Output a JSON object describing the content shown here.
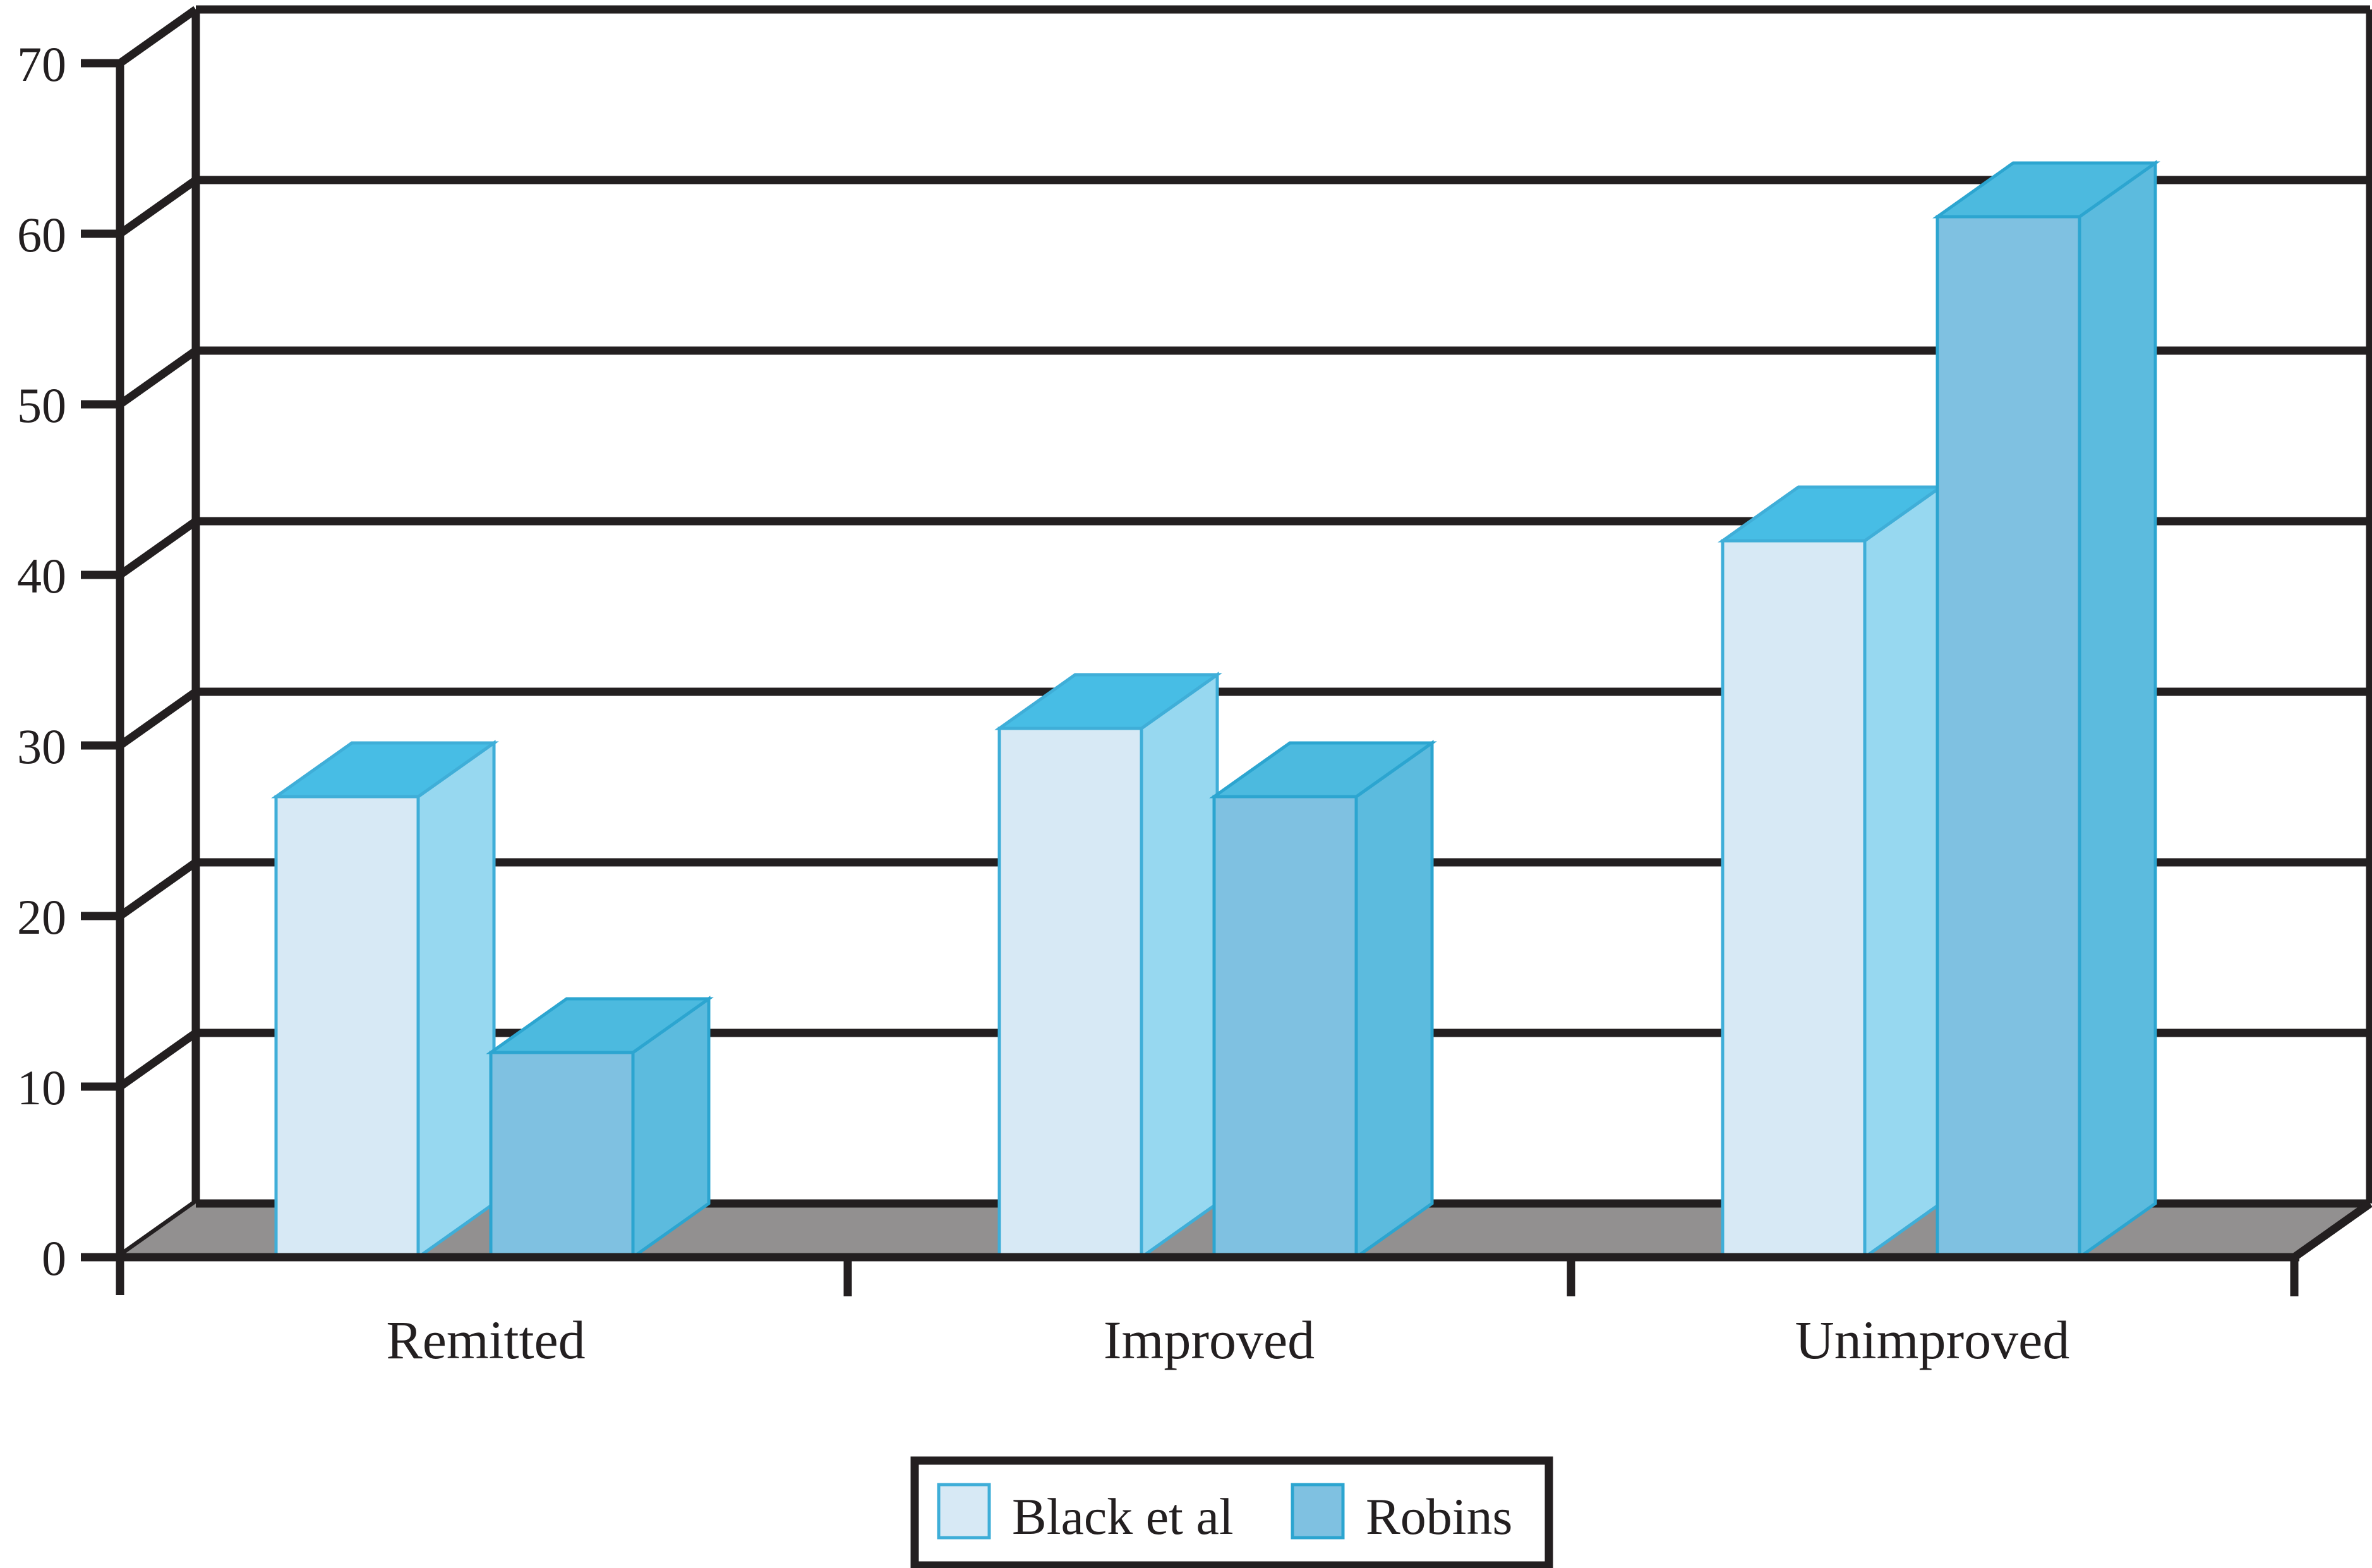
{
  "chart_data": {
    "type": "bar",
    "style": "3d-columns",
    "title": "",
    "categories": [
      "Remitted",
      "Improved",
      "Unimproved"
    ],
    "series": [
      {
        "name": "Black et al",
        "values": [
          27,
          31,
          42
        ]
      },
      {
        "name": "Robins",
        "values": [
          12,
          27,
          61
        ]
      }
    ],
    "xlabel": "",
    "ylabel": "",
    "ylim": [
      0,
      70
    ],
    "ytick_step": 10,
    "yticks": [
      0,
      10,
      20,
      30,
      40,
      50,
      60,
      70
    ],
    "grid": true,
    "legend_position": "bottom-center"
  },
  "colors": {
    "series": [
      {
        "front": "#D7E9F5",
        "side": "#97D8F0",
        "top": "#47BDE5",
        "outline": "#3FAED8"
      },
      {
        "front": "#7FC1E1",
        "side": "#5CBBDE",
        "top": "#4CBADF",
        "outline": "#2CA5D0"
      }
    ],
    "floor": "#929090",
    "axis": "#231F20",
    "text": "#231F20",
    "background": "#FFFFFF"
  },
  "legend": {
    "items": [
      {
        "label": "Black et al"
      },
      {
        "label": "Robins"
      }
    ]
  }
}
